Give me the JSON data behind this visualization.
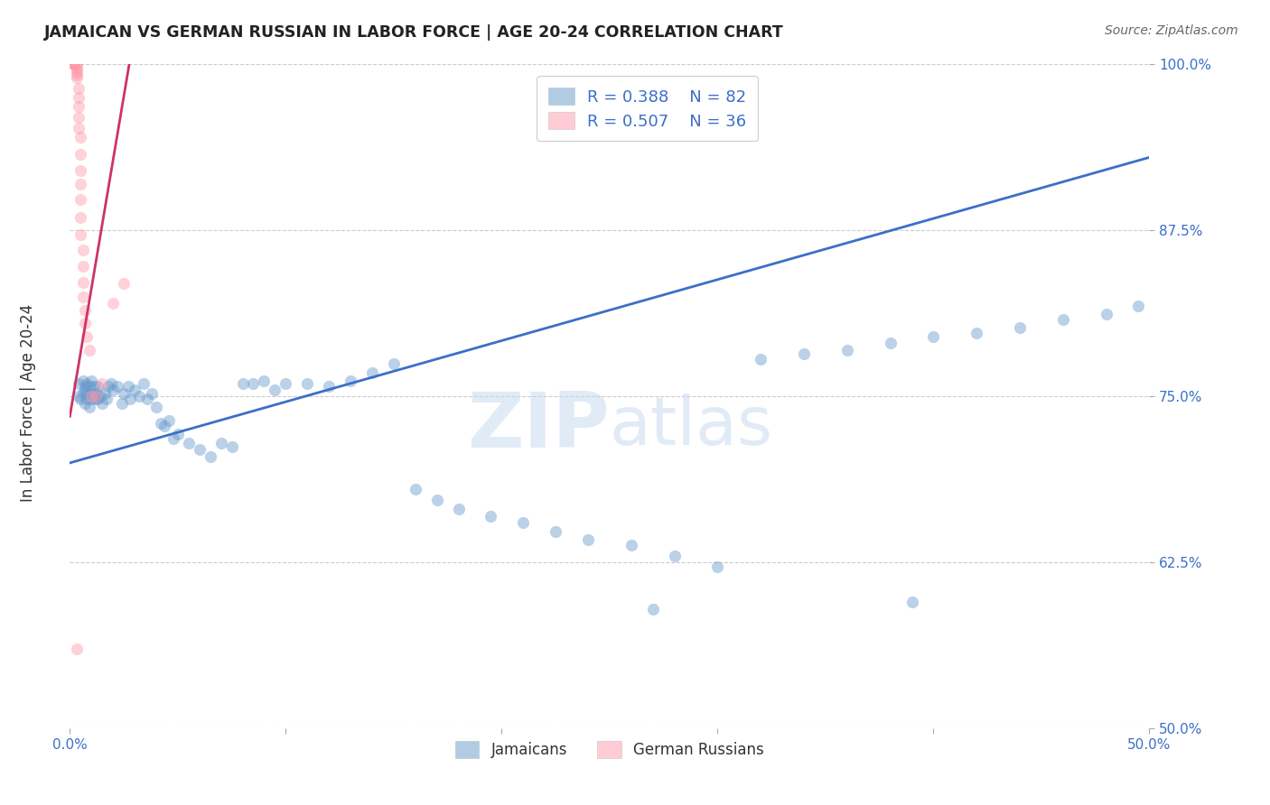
{
  "title": "JAMAICAN VS GERMAN RUSSIAN IN LABOR FORCE | AGE 20-24 CORRELATION CHART",
  "source": "Source: ZipAtlas.com",
  "ylabel": "In Labor Force | Age 20-24",
  "xlim": [
    0.0,
    0.5
  ],
  "ylim": [
    0.5,
    1.0
  ],
  "xticks": [
    0.0,
    0.1,
    0.2,
    0.3,
    0.4,
    0.5
  ],
  "xtick_labels": [
    "0.0%",
    "",
    "",
    "",
    "",
    "50.0%"
  ],
  "yticks": [
    0.5,
    0.625,
    0.75,
    0.875,
    1.0
  ],
  "ytick_labels": [
    "50.0%",
    "62.5%",
    "75.0%",
    "87.5%",
    "100.0%"
  ],
  "blue_R": 0.388,
  "blue_N": 82,
  "pink_R": 0.507,
  "pink_N": 36,
  "blue_label": "Jamaicans",
  "pink_label": "German Russians",
  "blue_color": "#6699CC",
  "pink_color": "#FF99AA",
  "blue_line_color": "#3B6FC9",
  "pink_line_color": "#CC3366",
  "watermark_zip": "ZIP",
  "watermark_atlas": "atlas",
  "blue_x": [
    0.004,
    0.004,
    0.005,
    0.006,
    0.006,
    0.007,
    0.007,
    0.007,
    0.008,
    0.008,
    0.008,
    0.009,
    0.009,
    0.01,
    0.01,
    0.01,
    0.011,
    0.011,
    0.012,
    0.012,
    0.013,
    0.013,
    0.014,
    0.015,
    0.016,
    0.017,
    0.018,
    0.019,
    0.02,
    0.022,
    0.024,
    0.025,
    0.027,
    0.028,
    0.03,
    0.032,
    0.034,
    0.036,
    0.038,
    0.04,
    0.042,
    0.044,
    0.046,
    0.048,
    0.05,
    0.055,
    0.06,
    0.065,
    0.07,
    0.075,
    0.08,
    0.085,
    0.09,
    0.095,
    0.1,
    0.11,
    0.12,
    0.13,
    0.14,
    0.15,
    0.16,
    0.17,
    0.18,
    0.195,
    0.21,
    0.225,
    0.24,
    0.26,
    0.28,
    0.3,
    0.32,
    0.34,
    0.36,
    0.38,
    0.4,
    0.42,
    0.44,
    0.46,
    0.48,
    0.495,
    0.27,
    0.39
  ],
  "blue_y": [
    0.75,
    0.76,
    0.748,
    0.752,
    0.762,
    0.745,
    0.755,
    0.758,
    0.748,
    0.752,
    0.76,
    0.742,
    0.758,
    0.748,
    0.752,
    0.762,
    0.75,
    0.758,
    0.748,
    0.752,
    0.748,
    0.758,
    0.75,
    0.745,
    0.752,
    0.748,
    0.758,
    0.76,
    0.755,
    0.758,
    0.745,
    0.752,
    0.758,
    0.748,
    0.755,
    0.75,
    0.76,
    0.748,
    0.752,
    0.742,
    0.73,
    0.728,
    0.732,
    0.718,
    0.722,
    0.715,
    0.71,
    0.705,
    0.715,
    0.712,
    0.76,
    0.76,
    0.762,
    0.755,
    0.76,
    0.76,
    0.758,
    0.762,
    0.768,
    0.775,
    0.68,
    0.672,
    0.665,
    0.66,
    0.655,
    0.648,
    0.642,
    0.638,
    0.63,
    0.622,
    0.778,
    0.782,
    0.785,
    0.79,
    0.795,
    0.798,
    0.802,
    0.808,
    0.812,
    0.818,
    0.59,
    0.595
  ],
  "pink_x": [
    0.002,
    0.002,
    0.002,
    0.002,
    0.003,
    0.003,
    0.003,
    0.003,
    0.003,
    0.003,
    0.004,
    0.004,
    0.004,
    0.004,
    0.004,
    0.005,
    0.005,
    0.005,
    0.005,
    0.005,
    0.005,
    0.005,
    0.006,
    0.006,
    0.006,
    0.006,
    0.007,
    0.007,
    0.008,
    0.009,
    0.012,
    0.015,
    0.02,
    0.025,
    0.01,
    0.003
  ],
  "pink_y": [
    1.0,
    1.0,
    1.0,
    1.0,
    1.0,
    0.998,
    0.996,
    0.994,
    0.992,
    0.99,
    0.982,
    0.975,
    0.968,
    0.96,
    0.952,
    0.945,
    0.932,
    0.92,
    0.91,
    0.898,
    0.885,
    0.872,
    0.86,
    0.848,
    0.836,
    0.825,
    0.815,
    0.805,
    0.795,
    0.785,
    0.75,
    0.76,
    0.82,
    0.835,
    0.75,
    0.56
  ],
  "blue_trend_x": [
    0.0,
    0.5
  ],
  "blue_trend_y": [
    0.7,
    0.93
  ],
  "pink_trend_x": [
    0.0,
    0.028
  ],
  "pink_trend_y": [
    0.735,
    1.005
  ]
}
